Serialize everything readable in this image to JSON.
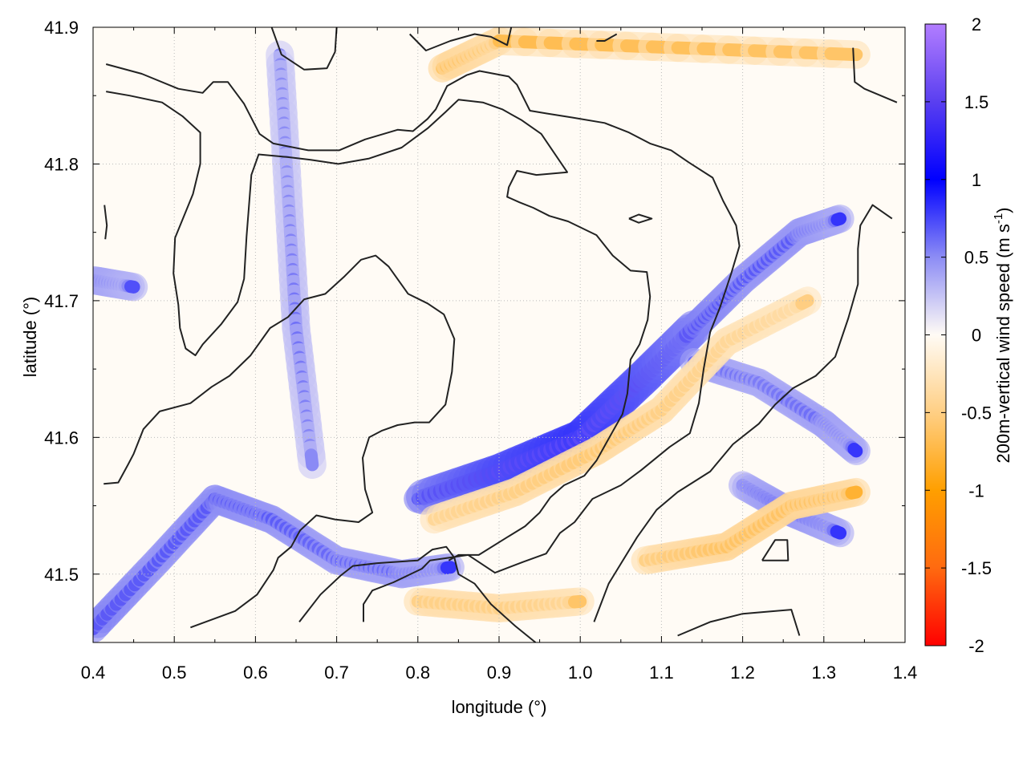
{
  "chart_data": {
    "type": "heatmap",
    "title": "",
    "xlabel": "longitude (°)",
    "ylabel": "latitude (°)",
    "xlim": [
      0.4,
      1.4
    ],
    "ylim": [
      41.45,
      41.9
    ],
    "x_ticks": [
      0.4,
      0.5,
      0.6,
      0.7,
      0.8,
      0.9,
      1.0,
      1.1,
      1.2,
      1.3,
      1.4
    ],
    "x_tick_labels": [
      "0.4",
      "0.5",
      "0.6",
      "0.7",
      "0.8",
      "0.9",
      "1.0",
      "1.1",
      "1.2",
      "1.3",
      "1.4"
    ],
    "y_ticks": [
      41.5,
      41.6,
      41.7,
      41.8,
      41.9
    ],
    "y_tick_labels": [
      "41.5",
      "41.6",
      "41.7",
      "41.8",
      "41.9"
    ],
    "grid": true,
    "colorbar": {
      "label": "200m-vertical wind speed (m s",
      "label_sup": "-1",
      "label_end": ")",
      "range": [
        -2,
        2
      ],
      "ticks": [
        2,
        1.5,
        1,
        0.5,
        0,
        -0.5,
        -1,
        -1.5,
        -2
      ],
      "tick_labels": [
        "2",
        "1.5",
        "1",
        "0.5",
        "0",
        "-0.5",
        "-1",
        "-1.5",
        "-2"
      ],
      "stops": [
        {
          "v": 2,
          "color": "#b27dff"
        },
        {
          "v": 1.5,
          "color": "#5a3ff0"
        },
        {
          "v": 1.0,
          "color": "#0000ff"
        },
        {
          "v": 0.5,
          "color": "#8c8cf5"
        },
        {
          "v": 0.0,
          "color": "#fffbf5"
        },
        {
          "v": -0.5,
          "color": "#ffcf84"
        },
        {
          "v": -1.0,
          "color": "#ff9f00"
        },
        {
          "v": -1.5,
          "color": "#ff6a10"
        },
        {
          "v": -2,
          "color": "#ff0000"
        }
      ]
    },
    "features": [
      {
        "name": "updraft band NE",
        "points": [
          [
            0.8,
            41.555,
            1.2
          ],
          [
            0.9,
            41.575,
            1.6
          ],
          [
            1.0,
            41.6,
            1.8
          ],
          [
            1.08,
            41.645,
            1.5
          ],
          [
            1.14,
            41.68,
            1.2
          ],
          [
            1.2,
            41.715,
            1.0
          ],
          [
            1.27,
            41.75,
            1.0
          ],
          [
            1.32,
            41.76,
            0.8
          ]
        ]
      },
      {
        "name": "updraft band S",
        "points": [
          [
            0.4,
            41.46,
            1.2
          ],
          [
            0.48,
            41.51,
            1.0
          ],
          [
            0.55,
            41.555,
            1.1
          ],
          [
            0.62,
            41.54,
            1.0
          ],
          [
            0.7,
            41.51,
            0.9
          ],
          [
            0.78,
            41.5,
            0.9
          ],
          [
            0.84,
            41.505,
            0.8
          ]
        ]
      },
      {
        "name": "updraft band E",
        "points": [
          [
            1.14,
            41.655,
            0.9
          ],
          [
            1.22,
            41.64,
            0.8
          ],
          [
            1.3,
            41.61,
            0.9
          ],
          [
            1.34,
            41.59,
            0.8
          ]
        ]
      },
      {
        "name": "updraft band SE",
        "points": [
          [
            1.2,
            41.565,
            0.8
          ],
          [
            1.26,
            41.545,
            1.0
          ],
          [
            1.32,
            41.53,
            0.8
          ]
        ]
      },
      {
        "name": "updraft band W",
        "points": [
          [
            0.4,
            41.715,
            0.9
          ],
          [
            0.45,
            41.71,
            0.7
          ]
        ]
      },
      {
        "name": "updraft strip N",
        "points": [
          [
            0.63,
            41.88,
            0.5
          ],
          [
            0.64,
            41.78,
            0.5
          ],
          [
            0.65,
            41.68,
            0.6
          ],
          [
            0.67,
            41.58,
            0.5
          ]
        ]
      },
      {
        "name": "downdraft band NE",
        "points": [
          [
            0.82,
            41.54,
            -0.6
          ],
          [
            0.92,
            41.56,
            -0.7
          ],
          [
            1.02,
            41.59,
            -0.8
          ],
          [
            1.1,
            41.62,
            -0.7
          ],
          [
            1.18,
            41.67,
            -0.6
          ],
          [
            1.28,
            41.7,
            -0.5
          ]
        ]
      },
      {
        "name": "downdraft band SE",
        "points": [
          [
            1.08,
            41.51,
            -0.7
          ],
          [
            1.18,
            41.52,
            -0.9
          ],
          [
            1.26,
            41.55,
            -0.9
          ],
          [
            1.34,
            41.56,
            -0.8
          ]
        ]
      },
      {
        "name": "downdraft band S",
        "points": [
          [
            0.8,
            41.48,
            -0.7
          ],
          [
            0.9,
            41.475,
            -0.7
          ],
          [
            1.0,
            41.48,
            -0.6
          ]
        ]
      },
      {
        "name": "downdraft N",
        "points": [
          [
            0.83,
            41.87,
            -0.9
          ],
          [
            0.9,
            41.89,
            -0.7
          ],
          [
            1.34,
            41.88,
            -0.6
          ]
        ]
      }
    ],
    "contours": [
      [
        [
          0.416,
          41.873
        ],
        [
          0.46,
          41.866
        ],
        [
          0.505,
          41.855
        ],
        [
          0.535,
          41.852
        ],
        [
          0.548,
          41.86
        ],
        [
          0.566,
          41.86
        ],
        [
          0.586,
          41.844
        ],
        [
          0.605,
          41.822
        ],
        [
          0.622,
          41.815
        ],
        [
          0.665,
          41.81
        ],
        [
          0.703,
          41.81
        ],
        [
          0.735,
          41.818
        ],
        [
          0.775,
          41.825
        ],
        [
          0.794,
          41.824
        ],
        [
          0.812,
          41.833
        ],
        [
          0.822,
          41.84
        ],
        [
          0.836,
          41.857
        ],
        [
          0.86,
          41.865
        ],
        [
          0.876,
          41.868
        ],
        [
          0.912,
          41.864
        ],
        [
          0.922,
          41.858
        ],
        [
          0.938,
          41.839
        ],
        [
          0.958,
          41.837
        ],
        [
          0.99,
          41.834
        ],
        [
          1.03,
          41.83
        ],
        [
          1.06,
          41.823
        ],
        [
          1.086,
          41.815
        ],
        [
          1.112,
          41.81
        ],
        [
          1.134,
          41.801
        ],
        [
          1.163,
          41.79
        ],
        [
          1.176,
          41.773
        ],
        [
          1.192,
          41.755
        ],
        [
          1.196,
          41.74
        ],
        [
          1.186,
          41.72
        ],
        [
          1.172,
          41.695
        ],
        [
          1.16,
          41.677
        ],
        [
          1.152,
          41.65
        ],
        [
          1.146,
          41.625
        ],
        [
          1.135,
          41.603
        ],
        [
          1.11,
          41.593
        ],
        [
          1.075,
          41.576
        ],
        [
          1.05,
          41.565
        ],
        [
          1.015,
          41.555
        ],
        [
          0.993,
          41.538
        ],
        [
          0.975,
          41.53
        ],
        [
          0.958,
          41.515
        ],
        [
          0.93,
          41.509
        ],
        [
          0.895,
          41.501
        ],
        [
          0.862,
          41.514
        ],
        [
          0.815,
          41.51
        ],
        [
          0.805,
          41.504
        ],
        [
          0.77,
          41.494
        ],
        [
          0.744,
          41.488
        ],
        [
          0.733,
          41.478
        ],
        [
          0.733,
          41.465
        ]
      ],
      [
        [
          0.416,
          41.853
        ],
        [
          0.445,
          41.85
        ],
        [
          0.485,
          41.845
        ],
        [
          0.51,
          41.835
        ],
        [
          0.532,
          41.823
        ],
        [
          0.532,
          41.8
        ],
        [
          0.523,
          41.778
        ],
        [
          0.501,
          41.746
        ],
        [
          0.499,
          41.72
        ],
        [
          0.505,
          41.697
        ],
        [
          0.507,
          41.68
        ],
        [
          0.514,
          41.665
        ],
        [
          0.526,
          41.66
        ],
        [
          0.535,
          41.668
        ],
        [
          0.558,
          41.683
        ],
        [
          0.578,
          41.699
        ],
        [
          0.586,
          41.716
        ],
        [
          0.589,
          41.747
        ],
        [
          0.595,
          41.792
        ],
        [
          0.604,
          41.807
        ],
        [
          0.64,
          41.805
        ],
        [
          0.668,
          41.803
        ],
        [
          0.702,
          41.8
        ],
        [
          0.74,
          41.804
        ],
        [
          0.78,
          41.812
        ],
        [
          0.812,
          41.826
        ],
        [
          0.834,
          41.838
        ],
        [
          0.85,
          41.847
        ],
        [
          0.88,
          41.845
        ],
        [
          0.904,
          41.84
        ],
        [
          0.928,
          41.832
        ],
        [
          0.952,
          41.822
        ],
        [
          0.968,
          41.808
        ],
        [
          0.984,
          41.794
        ],
        [
          0.946,
          41.792
        ],
        [
          0.922,
          41.795
        ],
        [
          0.912,
          41.783
        ],
        [
          0.91,
          41.776
        ],
        [
          0.925,
          41.772
        ],
        [
          0.942,
          41.768
        ],
        [
          0.962,
          41.762
        ],
        [
          0.985,
          41.758
        ],
        [
          1.02,
          41.748
        ],
        [
          1.04,
          41.733
        ],
        [
          1.062,
          41.722
        ],
        [
          1.082,
          41.721
        ],
        [
          1.086,
          41.703
        ],
        [
          1.083,
          41.686
        ],
        [
          1.073,
          41.668
        ],
        [
          1.062,
          41.657
        ],
        [
          1.058,
          41.632
        ],
        [
          1.052,
          41.617
        ],
        [
          1.034,
          41.598
        ],
        [
          1.02,
          41.583
        ],
        [
          1.005,
          41.572
        ],
        [
          0.98,
          41.565
        ],
        [
          0.963,
          41.556
        ],
        [
          0.95,
          41.545
        ],
        [
          0.932,
          41.535
        ],
        [
          0.91,
          41.527
        ],
        [
          0.875,
          41.514
        ],
        [
          0.85,
          41.514
        ],
        [
          0.838,
          41.51
        ]
      ],
      [
        [
          0.413,
          41.566
        ],
        [
          0.431,
          41.567
        ],
        [
          0.443,
          41.58
        ],
        [
          0.45,
          41.588
        ],
        [
          0.462,
          41.606
        ],
        [
          0.482,
          41.619
        ],
        [
          0.52,
          41.625
        ],
        [
          0.546,
          41.637
        ],
        [
          0.568,
          41.645
        ],
        [
          0.594,
          41.66
        ],
        [
          0.618,
          41.68
        ],
        [
          0.64,
          41.688
        ],
        [
          0.66,
          41.701
        ],
        [
          0.686,
          41.705
        ],
        [
          0.71,
          41.718
        ],
        [
          0.73,
          41.73
        ],
        [
          0.748,
          41.733
        ],
        [
          0.764,
          41.725
        ],
        [
          0.788,
          41.705
        ],
        [
          0.812,
          41.698
        ],
        [
          0.832,
          41.69
        ],
        [
          0.845,
          41.672
        ],
        [
          0.842,
          41.648
        ],
        [
          0.834,
          41.624
        ],
        [
          0.814,
          41.611
        ],
        [
          0.796,
          41.611
        ],
        [
          0.775,
          41.609
        ],
        [
          0.756,
          41.605
        ],
        [
          0.74,
          41.6
        ],
        [
          0.732,
          41.585
        ],
        [
          0.735,
          41.562
        ],
        [
          0.744,
          41.545
        ],
        [
          0.727,
          41.538
        ],
        [
          0.698,
          41.54
        ],
        [
          0.675,
          41.543
        ],
        [
          0.655,
          41.532
        ],
        [
          0.644,
          41.52
        ],
        [
          0.628,
          41.512
        ],
        [
          0.622,
          41.503
        ],
        [
          0.602,
          41.485
        ],
        [
          0.575,
          41.473
        ],
        [
          0.52,
          41.461
        ]
      ],
      [
        [
          0.654,
          41.465
        ],
        [
          0.68,
          41.485
        ],
        [
          0.705,
          41.499
        ],
        [
          0.72,
          41.506
        ],
        [
          0.75,
          41.508
        ],
        [
          0.8,
          41.51
        ],
        [
          0.818,
          41.518
        ],
        [
          0.835,
          41.52
        ],
        [
          0.845,
          41.512
        ],
        [
          0.85,
          41.5
        ],
        [
          0.87,
          41.493
        ],
        [
          0.89,
          41.478
        ],
        [
          0.92,
          41.462
        ],
        [
          0.945,
          41.45
        ]
      ],
      [
        [
          1.12,
          41.455
        ],
        [
          1.16,
          41.465
        ],
        [
          1.2,
          41.471
        ],
        [
          1.26,
          41.474
        ],
        [
          1.27,
          41.455
        ]
      ],
      [
        [
          1.224,
          41.51
        ],
        [
          1.256,
          41.51
        ],
        [
          1.255,
          41.525
        ],
        [
          1.24,
          41.525
        ],
        [
          1.224,
          41.51
        ]
      ],
      [
        [
          1.017,
          41.465
        ],
        [
          1.035,
          41.493
        ],
        [
          1.07,
          41.527
        ],
        [
          1.094,
          41.547
        ],
        [
          1.12,
          41.56
        ],
        [
          1.16,
          41.575
        ],
        [
          1.188,
          41.595
        ],
        [
          1.22,
          41.61
        ],
        [
          1.24,
          41.624
        ],
        [
          1.262,
          41.636
        ],
        [
          1.29,
          41.645
        ],
        [
          1.314,
          41.659
        ],
        [
          1.33,
          41.687
        ],
        [
          1.342,
          41.712
        ],
        [
          1.342,
          41.738
        ],
        [
          1.345,
          41.755
        ],
        [
          1.36,
          41.77
        ],
        [
          1.384,
          41.76
        ]
      ],
      [
        [
          1.06,
          41.76
        ],
        [
          1.072,
          41.763
        ],
        [
          1.088,
          41.76
        ],
        [
          1.072,
          41.757
        ],
        [
          1.06,
          41.76
        ]
      ],
      [
        [
          1.336,
          41.885
        ],
        [
          1.338,
          41.86
        ],
        [
          1.35,
          41.855
        ],
        [
          1.39,
          41.845
        ]
      ],
      [
        [
          0.414,
          41.77
        ],
        [
          0.417,
          41.755
        ],
        [
          0.415,
          41.745
        ]
      ],
      [
        [
          0.62,
          41.9
        ],
        [
          0.632,
          41.88
        ],
        [
          0.66,
          41.869
        ],
        [
          0.688,
          41.87
        ],
        [
          0.698,
          41.882
        ],
        [
          0.7,
          41.9
        ]
      ],
      [
        [
          0.79,
          41.895
        ],
        [
          0.81,
          41.883
        ],
        [
          0.84,
          41.89
        ],
        [
          0.87,
          41.895
        ],
        [
          0.89,
          41.893
        ],
        [
          0.91,
          41.887
        ],
        [
          0.915,
          41.9
        ]
      ],
      [
        [
          1.02,
          41.89
        ],
        [
          1.03,
          41.89
        ],
        [
          1.045,
          41.895
        ]
      ]
    ]
  }
}
